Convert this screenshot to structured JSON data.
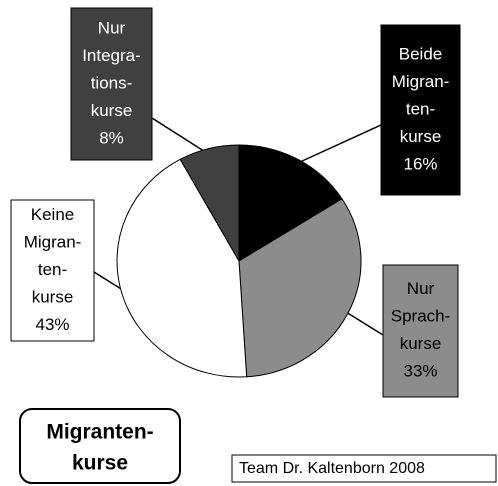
{
  "chart_data": {
    "type": "pie",
    "title": [
      "Migranten-",
      "kurse"
    ],
    "categories": [
      [
        "Beide",
        "Migran-",
        "ten-",
        "kurse"
      ],
      [
        "Nur",
        "Sprach-",
        "kurse"
      ],
      [
        "Keine",
        "Migran-",
        "ten-",
        "kurse"
      ],
      [
        "Nur",
        "Integra-",
        "tions-",
        "kurse"
      ]
    ],
    "values": [
      16,
      33,
      43,
      8
    ],
    "value_labels": [
      "16%",
      "33%",
      "43%",
      "8%"
    ],
    "colors": [
      "#000000",
      "#8c8c8c",
      "#ffffff",
      "#404040"
    ],
    "annotation": "Team Dr. Kaltenborn 2008"
  }
}
